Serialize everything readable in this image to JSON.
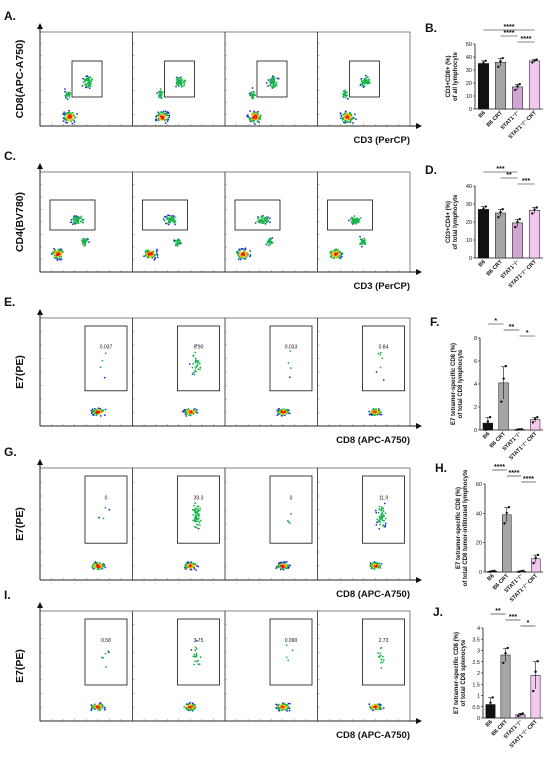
{
  "colors": {
    "black": "#111111",
    "grey": "#a6a6a6",
    "purple": "#cfa6d3",
    "pink": "#f3c8ee",
    "dot_blue": "#1f2fd1"
  },
  "panels": [
    {
      "key": "A",
      "letter": "A.",
      "ylabel": "CD8(APC-A750)",
      "xlabel": "CD3 (PerCP)",
      "gates": [
        "",
        "",
        "",
        ""
      ]
    },
    {
      "key": "C",
      "letter": "C.",
      "ylabel": "CD4(BV780)",
      "xlabel": "CD3 (PerCP)",
      "gates": [
        "",
        "",
        "",
        ""
      ]
    },
    {
      "key": "E",
      "letter": "E.",
      "ylabel": "E7(PE)",
      "xlabel": "CD8 (APC-A750)",
      "gates": [
        "0.037",
        "6.90",
        "0.033",
        "0.84"
      ]
    },
    {
      "key": "G",
      "letter": "G.",
      "ylabel": "E7(PE)",
      "xlabel": "CD8 (APC-A750)",
      "gates": [
        "0",
        "39.3",
        "0",
        "11.9"
      ]
    },
    {
      "key": "I",
      "letter": "I.",
      "ylabel": "E7(PE)",
      "xlabel": "CD8 (APC-A750)",
      "gates": [
        "0.58",
        "3.75",
        "0.090",
        "2.73"
      ]
    }
  ],
  "chart_data": [
    {
      "key": "B",
      "letter": "B.",
      "type": "bar",
      "categories": [
        "B6",
        "B6 CRT",
        "STAT1⁻/⁻",
        "STAT1⁻/⁻ CRT"
      ],
      "values": [
        35,
        36,
        17,
        37
      ],
      "errors": [
        2,
        3,
        2,
        1
      ],
      "ylabel": "CD3+CD8+ (%)\nof all lymphocyte",
      "ylim": [
        0,
        50
      ],
      "yticks": [
        0,
        10,
        20,
        30,
        40,
        50
      ],
      "sig": [
        {
          "from": 0,
          "to": 3,
          "label": "****"
        },
        {
          "from": 1,
          "to": 2,
          "label": "****"
        },
        {
          "from": 2,
          "to": 3,
          "label": "****"
        }
      ]
    },
    {
      "key": "D",
      "letter": "D.",
      "type": "bar",
      "categories": [
        "B6",
        "B6 CRT",
        "STAT1⁻/⁻",
        "STAT1⁻/⁻ CRT"
      ],
      "values": [
        27,
        25,
        19.5,
        26.5
      ],
      "errors": [
        1.5,
        2,
        2,
        1.5
      ],
      "ylabel": "CD3+CD4+ (%)\nof total lymphocyte",
      "ylim": [
        0,
        40
      ],
      "yticks": [
        0,
        10,
        20,
        30,
        40
      ],
      "sig": [
        {
          "from": 0,
          "to": 2,
          "label": "***"
        },
        {
          "from": 1,
          "to": 2,
          "label": "**"
        },
        {
          "from": 2,
          "to": 3,
          "label": "***"
        }
      ]
    },
    {
      "key": "F",
      "letter": "F.",
      "type": "bar",
      "categories": [
        "B6",
        "B6 CRT",
        "STAT1⁻/⁻",
        "STAT1⁻/⁻ CRT"
      ],
      "values": [
        0.6,
        4.1,
        0.05,
        0.9
      ],
      "errors": [
        0.5,
        1.4,
        0.02,
        0.2
      ],
      "ylabel": "E7 tetramer-specific CD8 (%)\nof total CD8 lymphocyte",
      "ylim": [
        0,
        8
      ],
      "yticks": [
        0,
        2,
        4,
        6,
        8
      ],
      "sig": [
        {
          "from": 0,
          "to": 1,
          "label": "*"
        },
        {
          "from": 1,
          "to": 2,
          "label": "**"
        },
        {
          "from": 2,
          "to": 3,
          "label": "*"
        }
      ]
    },
    {
      "key": "H",
      "letter": "H.",
      "type": "bar",
      "categories": [
        "B6",
        "B6 CRT",
        "STAT1⁻/⁻",
        "STAT1⁻/⁻ CRT"
      ],
      "values": [
        0.5,
        39,
        0.5,
        9
      ],
      "errors": [
        0.3,
        5,
        0.3,
        2.5
      ],
      "ylabel": "E7 tetramer-specific CD8 (%)\nof total CD8 tumor-infiltrated lymphocyte",
      "ylim": [
        0,
        60
      ],
      "yticks": [
        0,
        20,
        40,
        60
      ],
      "sig": [
        {
          "from": 0,
          "to": 1,
          "label": "****"
        },
        {
          "from": 1,
          "to": 2,
          "label": "****"
        },
        {
          "from": 2,
          "to": 3,
          "label": "****"
        }
      ]
    },
    {
      "key": "J",
      "letter": "J.",
      "type": "bar",
      "categories": [
        "B6",
        "B6 CRT",
        "STAT1⁻/⁻",
        "STAT1⁻/⁻ CRT"
      ],
      "values": [
        0.6,
        2.8,
        0.15,
        1.9
      ],
      "errors": [
        0.3,
        0.3,
        0.05,
        0.6
      ],
      "ylabel": "E7 tetramer-specific CD8 (%)\nof total CD8 splenocyte",
      "ylim": [
        0,
        4
      ],
      "yticks": [
        0,
        0.5,
        1.0,
        1.5,
        2.0,
        2.5,
        3.0,
        3.5,
        4.0
      ],
      "sig": [
        {
          "from": 0,
          "to": 1,
          "label": "**"
        },
        {
          "from": 1,
          "to": 2,
          "label": "***"
        },
        {
          "from": 2,
          "to": 3,
          "label": "*"
        }
      ]
    }
  ]
}
